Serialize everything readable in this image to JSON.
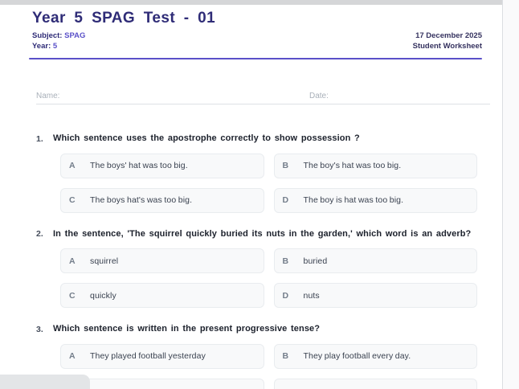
{
  "header": {
    "title": "Year 5 SPAG Test - 01",
    "subject_label": "Subject:",
    "subject_value": "SPAG",
    "year_label": "Year:",
    "year_value": "5",
    "date": "17 December 2025",
    "doc_type": "Student Worksheet"
  },
  "fields": {
    "name_label": "Name:",
    "date_label": "Date:"
  },
  "questions": [
    {
      "number": "1.",
      "text": "Which sentence uses the apostrophe correctly to show possession ?",
      "options": [
        {
          "letter": "A",
          "text": "The boys' hat was too big."
        },
        {
          "letter": "B",
          "text": "The boy's hat was too big."
        },
        {
          "letter": "C",
          "text": "The boys hat's was too big."
        },
        {
          "letter": "D",
          "text": "The boy is hat was too big."
        }
      ]
    },
    {
      "number": "2.",
      "text": "In the sentence, 'The squirrel quickly buried its nuts in the garden,' which word is an adverb?",
      "options": [
        {
          "letter": "A",
          "text": "squirrel"
        },
        {
          "letter": "B",
          "text": "buried"
        },
        {
          "letter": "C",
          "text": "quickly"
        },
        {
          "letter": "D",
          "text": "nuts"
        }
      ]
    },
    {
      "number": "3.",
      "text": "Which sentence is written in the present progressive tense?",
      "options": [
        {
          "letter": "A",
          "text": "They played football yesterday"
        },
        {
          "letter": "B",
          "text": "They play football every day."
        },
        {
          "letter": "",
          "text": ""
        },
        {
          "letter": "",
          "text": ""
        }
      ]
    }
  ],
  "colors": {
    "navy": "#2f2c77",
    "purple": "#5a50c8",
    "rule": "#5a50c8",
    "option_bg": "#f8f9fa",
    "option_border": "#e9ecef"
  }
}
